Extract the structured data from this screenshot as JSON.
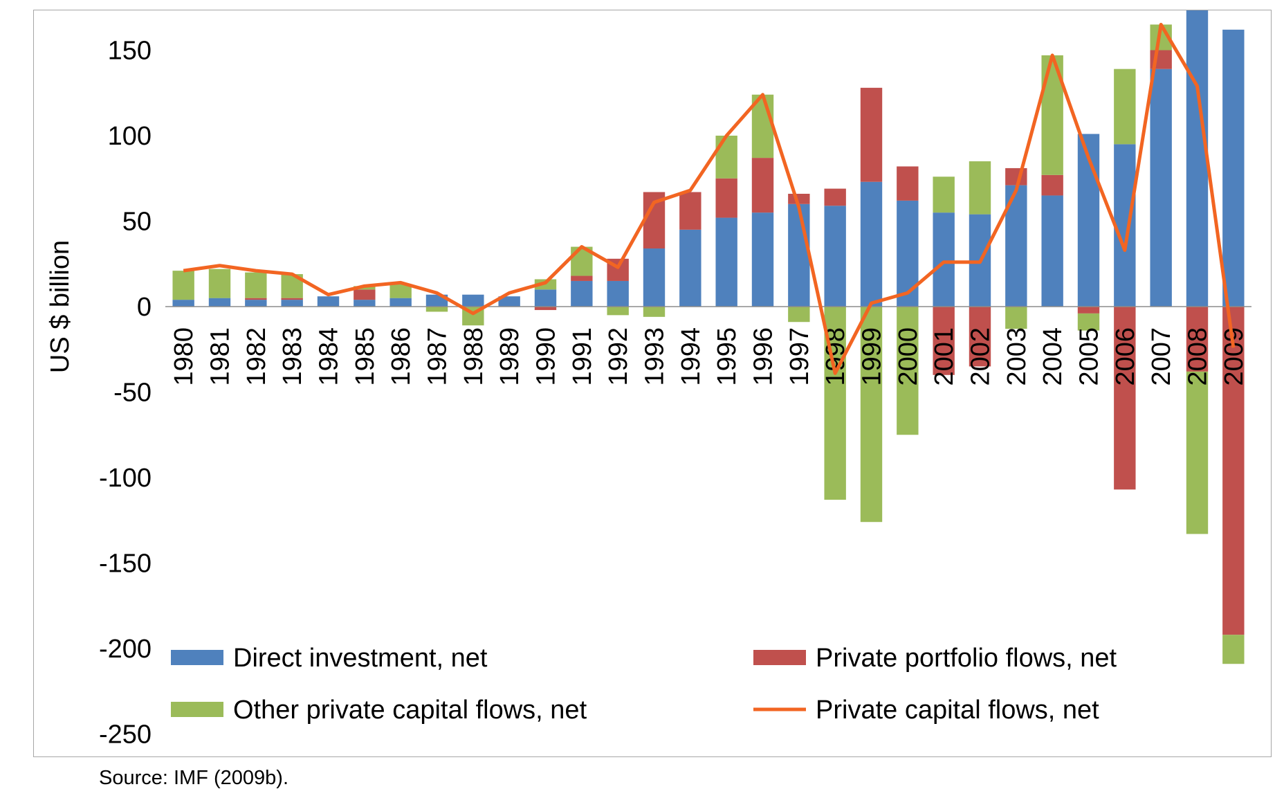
{
  "chart_data": {
    "type": "bar",
    "stacked": true,
    "ylabel": "US $ billion",
    "ylim": [
      -250,
      250
    ],
    "yticks": [
      250,
      200,
      150,
      100,
      50,
      0,
      -50,
      -100,
      -150,
      -200,
      -250
    ],
    "grid": false,
    "legend_position": "bottom",
    "categories": [
      "1980",
      "1981",
      "1982",
      "1983",
      "1984",
      "1985",
      "1986",
      "1987",
      "1988",
      "1989",
      "1990",
      "1991",
      "1992",
      "1993",
      "1994",
      "1995",
      "1996",
      "1997",
      "1998",
      "1999",
      "2000",
      "2001",
      "2002",
      "2003",
      "2004",
      "2005",
      "2006",
      "2007",
      "2008",
      "2009"
    ],
    "series": [
      {
        "name": "Direct investment, net",
        "kind": "bar",
        "color": "#4f81bd",
        "values": [
          4,
          5,
          4,
          4,
          6,
          4,
          5,
          7,
          7,
          6,
          10,
          15,
          15,
          34,
          45,
          52,
          55,
          60,
          59,
          73,
          62,
          55,
          54,
          71,
          65,
          101,
          95,
          139,
          222,
          162
        ]
      },
      {
        "name": "Private portfolio flows, net",
        "kind": "bar",
        "color": "#c0504d",
        "values": [
          0,
          0,
          1,
          1,
          0,
          6,
          0,
          0,
          0,
          0,
          -2,
          3,
          13,
          33,
          22,
          23,
          32,
          6,
          10,
          55,
          20,
          -40,
          -35,
          10,
          12,
          -4,
          -107,
          11,
          -38,
          -192
        ]
      },
      {
        "name": "Other private capital flows, net",
        "kind": "bar",
        "color": "#9bbb59",
        "values": [
          17,
          17,
          15,
          14,
          0,
          2,
          8,
          -3,
          -11,
          0,
          6,
          17,
          -5,
          -6,
          0,
          25,
          37,
          -9,
          -113,
          -126,
          -75,
          21,
          31,
          -13,
          70,
          -10,
          44,
          15,
          -95,
          -17
        ]
      },
      {
        "name": "Private capital flows, net",
        "kind": "line",
        "color": "#f26522",
        "values": [
          21,
          24,
          21,
          19,
          7,
          12,
          14,
          8,
          -4,
          8,
          14,
          35,
          23,
          61,
          68,
          100,
          124,
          58,
          -39,
          2,
          8,
          26,
          26,
          68,
          147,
          87,
          33,
          165,
          129,
          -24
        ]
      }
    ]
  },
  "source": "Source: IMF (2009b)."
}
